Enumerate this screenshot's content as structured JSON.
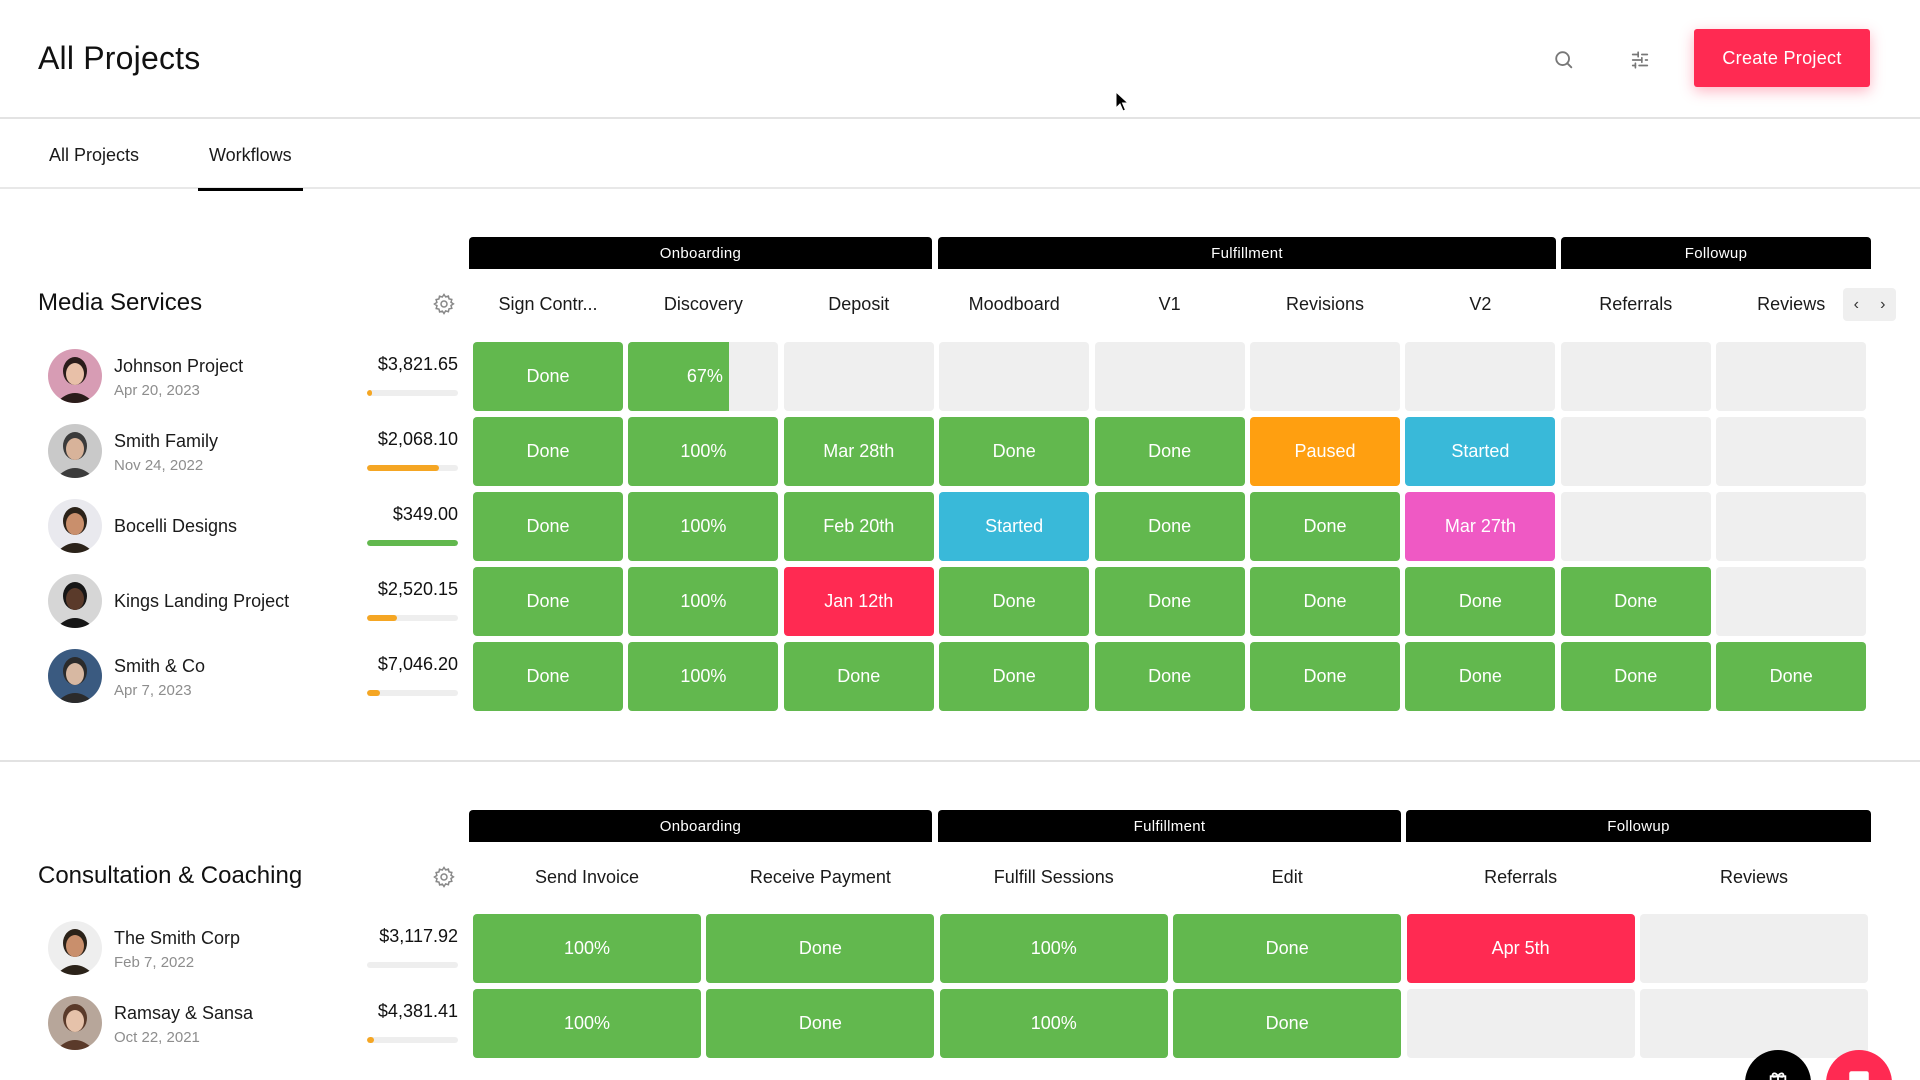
{
  "header": {
    "title": "All Projects",
    "create_button": "Create Project",
    "icons": [
      "search-icon",
      "filter-sliders-icon"
    ]
  },
  "tabs": [
    {
      "label": "All Projects",
      "active": false
    },
    {
      "label": "Workflows",
      "active": true
    }
  ],
  "colors": {
    "done": "#62b84e",
    "paused": "#ff9f10",
    "started": "#39b9d9",
    "scheduled_pink": "#ef59c4",
    "overdue": "#ff2a52",
    "empty": "#efefef",
    "accent": "#ff2a52",
    "progress_orange": "#f5a623",
    "progress_green": "#62b84e"
  },
  "sections": [
    {
      "title": "Media Services",
      "phases": [
        {
          "label": "Onboarding"
        },
        {
          "label": "Fulfillment"
        },
        {
          "label": "Followup"
        }
      ],
      "columns": [
        "Sign Contr...",
        "Discovery",
        "Deposit",
        "Moodboard",
        "V1",
        "Revisions",
        "V2",
        "Referrals",
        "Reviews"
      ],
      "clients": [
        {
          "name": "Johnson Project",
          "date": "Apr 20, 2023",
          "amount": "$3,821.65",
          "progress": 6,
          "progress_color": "orange",
          "cells": [
            {
              "label": "Done",
              "status": "done"
            },
            {
              "label": "67%",
              "status": "partial",
              "pct": 67
            },
            {
              "label": "",
              "status": "empty"
            },
            {
              "label": "",
              "status": "empty"
            },
            {
              "label": "",
              "status": "empty"
            },
            {
              "label": "",
              "status": "empty"
            },
            {
              "label": "",
              "status": "empty"
            },
            {
              "label": "",
              "status": "empty"
            },
            {
              "label": "",
              "status": "empty"
            }
          ]
        },
        {
          "name": "Smith Family",
          "date": "Nov 24, 2022",
          "amount": "$2,068.10",
          "progress": 79,
          "progress_color": "orange",
          "cells": [
            {
              "label": "Done",
              "status": "done"
            },
            {
              "label": "100%",
              "status": "done"
            },
            {
              "label": "Mar 28th",
              "status": "done"
            },
            {
              "label": "Done",
              "status": "done"
            },
            {
              "label": "Done",
              "status": "done"
            },
            {
              "label": "Paused",
              "status": "paused"
            },
            {
              "label": "Started",
              "status": "started"
            },
            {
              "label": "",
              "status": "empty"
            },
            {
              "label": "",
              "status": "empty"
            }
          ]
        },
        {
          "name": "Bocelli Designs",
          "date": "",
          "amount": "$349.00",
          "progress": 100,
          "progress_color": "green",
          "cells": [
            {
              "label": "Done",
              "status": "done"
            },
            {
              "label": "100%",
              "status": "done"
            },
            {
              "label": "Feb 20th",
              "status": "done"
            },
            {
              "label": "Started",
              "status": "started"
            },
            {
              "label": "Done",
              "status": "done"
            },
            {
              "label": "Done",
              "status": "done"
            },
            {
              "label": "Mar 27th",
              "status": "scheduled_pink"
            },
            {
              "label": "",
              "status": "empty"
            },
            {
              "label": "",
              "status": "empty"
            }
          ]
        },
        {
          "name": "Kings Landing Project",
          "date": "",
          "amount": "$2,520.15",
          "progress": 33,
          "progress_color": "orange",
          "cells": [
            {
              "label": "Done",
              "status": "done"
            },
            {
              "label": "100%",
              "status": "done"
            },
            {
              "label": "Jan 12th",
              "status": "overdue"
            },
            {
              "label": "Done",
              "status": "done"
            },
            {
              "label": "Done",
              "status": "done"
            },
            {
              "label": "Done",
              "status": "done"
            },
            {
              "label": "Done",
              "status": "done"
            },
            {
              "label": "Done",
              "status": "done"
            },
            {
              "label": "",
              "status": "empty"
            }
          ]
        },
        {
          "name": "Smith & Co",
          "date": "Apr 7, 2023",
          "amount": "$7,046.20",
          "progress": 14,
          "progress_color": "orange",
          "cells": [
            {
              "label": "Done",
              "status": "done"
            },
            {
              "label": "100%",
              "status": "done"
            },
            {
              "label": "Done",
              "status": "done"
            },
            {
              "label": "Done",
              "status": "done"
            },
            {
              "label": "Done",
              "status": "done"
            },
            {
              "label": "Done",
              "status": "done"
            },
            {
              "label": "Done",
              "status": "done"
            },
            {
              "label": "Done",
              "status": "done"
            },
            {
              "label": "Done",
              "status": "done"
            }
          ]
        }
      ]
    },
    {
      "title": "Consultation & Coaching",
      "phases": [
        {
          "label": "Onboarding"
        },
        {
          "label": "Fulfillment"
        },
        {
          "label": "Followup"
        }
      ],
      "columns": [
        "Send Invoice",
        "Receive Payment",
        "Fulfill Sessions",
        "Edit",
        "Referrals",
        "Reviews"
      ],
      "clients": [
        {
          "name": "The Smith Corp",
          "date": "Feb 7, 2022",
          "amount": "$3,117.92",
          "progress": 0,
          "progress_color": "orange",
          "cells": [
            {
              "label": "100%",
              "status": "done"
            },
            {
              "label": "Done",
              "status": "done"
            },
            {
              "label": "100%",
              "status": "done"
            },
            {
              "label": "Done",
              "status": "done"
            },
            {
              "label": "Apr 5th",
              "status": "overdue"
            },
            {
              "label": "",
              "status": "empty"
            }
          ]
        },
        {
          "name": "Ramsay & Sansa",
          "date": "Oct 22, 2021",
          "amount": "$4,381.41",
          "progress": 8,
          "progress_color": "orange",
          "cells": [
            {
              "label": "100%",
              "status": "done"
            },
            {
              "label": "Done",
              "status": "done"
            },
            {
              "label": "100%",
              "status": "done"
            },
            {
              "label": "Done",
              "status": "done"
            },
            {
              "label": "",
              "status": "empty"
            },
            {
              "label": "",
              "status": "empty"
            }
          ]
        }
      ]
    }
  ],
  "scroll_arrows": {
    "prev": "‹",
    "next": "›"
  }
}
